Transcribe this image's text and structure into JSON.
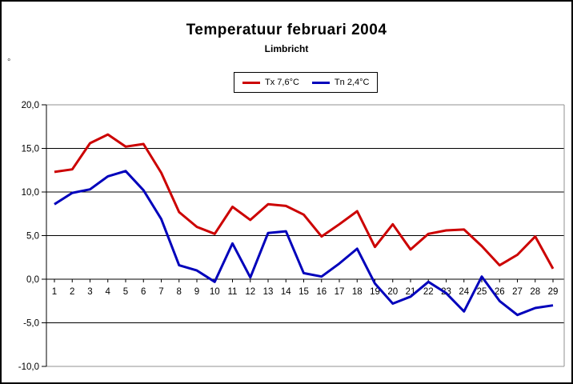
{
  "chart_data": {
    "type": "line",
    "title": "Temperatuur februari 2004",
    "subtitle": "Limbricht",
    "y_axis_unit_label": "°",
    "categories": [
      "1",
      "2",
      "3",
      "4",
      "5",
      "6",
      "7",
      "8",
      "9",
      "10",
      "11",
      "12",
      "13",
      "14",
      "15",
      "16",
      "17",
      "18",
      "19",
      "20",
      "21",
      "22",
      "23",
      "24",
      "25",
      "26",
      "27",
      "28",
      "29"
    ],
    "series": [
      {
        "name": "Tx 7,6°C",
        "color": "#cc0000",
        "values": [
          12.3,
          12.6,
          15.6,
          16.6,
          15.2,
          15.5,
          12.2,
          7.7,
          6.0,
          5.2,
          8.3,
          6.8,
          8.6,
          8.4,
          7.4,
          4.9,
          6.3,
          7.8,
          3.7,
          6.3,
          3.4,
          5.2,
          5.6,
          5.7,
          3.8,
          1.6,
          2.8,
          4.9,
          1.2
        ]
      },
      {
        "name": "Tn 2,4°C",
        "color": "#0000bb",
        "values": [
          8.6,
          9.9,
          10.3,
          11.8,
          12.4,
          10.2,
          6.9,
          1.6,
          1.0,
          -0.3,
          4.1,
          0.2,
          5.3,
          5.5,
          0.7,
          0.3,
          1.8,
          3.5,
          -0.5,
          -2.8,
          -2.0,
          -0.3,
          -1.6,
          -3.7,
          0.3,
          -2.5,
          -4.1,
          -3.3,
          -3.0
        ]
      }
    ],
    "ylim": [
      -10,
      20
    ],
    "yticks": [
      20,
      15,
      10,
      5,
      0,
      -5,
      -10
    ],
    "ytick_labels": [
      "20,0",
      "15,0",
      "10,0",
      "5,0",
      "0,0",
      "-5,0",
      "-10,0"
    ],
    "grid": true,
    "legend_position": "top-center",
    "xlabel": "",
    "ylabel": ""
  }
}
